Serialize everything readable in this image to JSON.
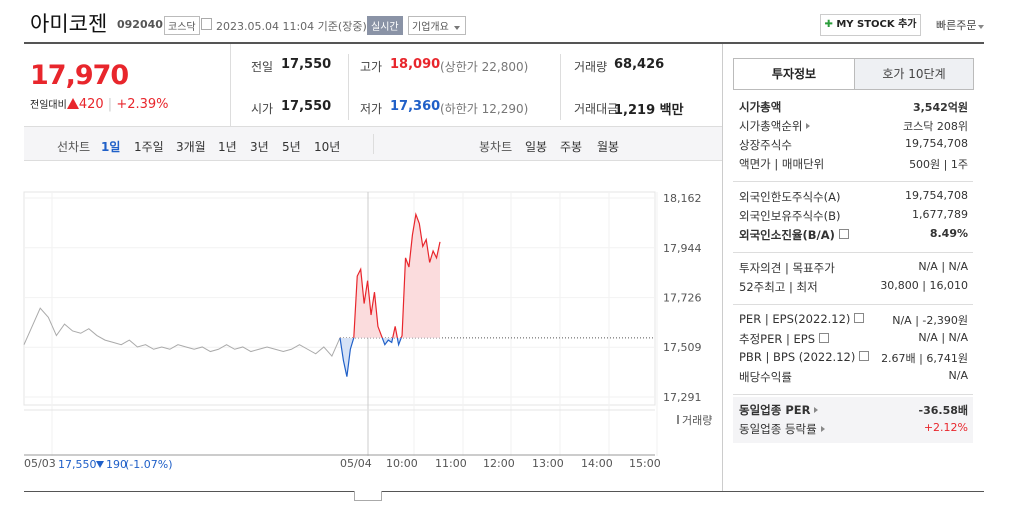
{
  "header": {
    "name": "아미코젠",
    "code": "092040",
    "market": "코스닥",
    "timestamp": "2023.05.04 11:04 기준(장중)",
    "realtime": "실시간",
    "company_info": "기업개요",
    "mystock": "MY STOCK 추가",
    "quick_order": "빠른주문"
  },
  "price": {
    "current": "17,970",
    "change_label": "전일대비",
    "change": "420",
    "change_pct": "+2.39%"
  },
  "quotes": {
    "rows": [
      [
        {
          "label": "전일",
          "value": "17,550"
        },
        {
          "label": "고가",
          "value": "18,090",
          "note": "(상한가 22,800)"
        },
        {
          "label": "거래량",
          "value": "68,426"
        }
      ],
      [
        {
          "label": "시가",
          "value": "17,550"
        },
        {
          "label": "저가",
          "value": "17,360",
          "note": "(하한가 12,290)"
        },
        {
          "label": "거래대금",
          "value": "1,219 백만"
        }
      ]
    ]
  },
  "tabs": {
    "line_chart": "선차트",
    "periods": [
      "1일",
      "1주일",
      "3개월",
      "1년",
      "3년",
      "5년",
      "10년"
    ],
    "candle_chart": "봉차트",
    "candles": [
      "일봉",
      "주봉",
      "월봉"
    ]
  },
  "chart_data": {
    "type": "line",
    "ylim": [
      17291,
      18162
    ],
    "yticks": [
      {
        "value": 17291,
        "label": "17,291"
      },
      {
        "value": 17509,
        "label": "17,509"
      },
      {
        "value": 17726,
        "label": "17,726"
      },
      {
        "value": 17944,
        "label": "17,944"
      },
      {
        "value": 18162,
        "label": "18,162"
      }
    ],
    "xticks": [
      "05/03",
      "05/04",
      "10:00",
      "11:00",
      "12:00",
      "13:00",
      "14:00",
      "15:00"
    ],
    "baseline": 17550,
    "prev_close": "17,550",
    "prev_change": "190",
    "prev_change_pct": "(-1.07%)",
    "volume_label": "거래량",
    "series": [
      {
        "color": "#aaaaaa",
        "values": [
          17520,
          17600,
          17680,
          17640,
          17560,
          17610,
          17580,
          17570,
          17590,
          17560,
          17540,
          17530,
          17520,
          17540,
          17510,
          17520,
          17500,
          17510,
          17500,
          17520,
          17510,
          17500,
          17510,
          17490,
          17500,
          17520,
          17500,
          17510,
          17490,
          17500,
          17510,
          17500,
          17490,
          17500,
          17520,
          17500,
          17480,
          17510,
          17470,
          17550
        ]
      },
      {
        "color": "#e8262c",
        "color_below": "#2060c8",
        "values": [
          17550,
          17450,
          17380,
          17500,
          17550,
          17820,
          17850,
          17700,
          17800,
          17650,
          17750,
          17600,
          17560,
          17520,
          17540,
          17530,
          17600,
          17520,
          17560,
          17900,
          17860,
          18000,
          18090,
          18050,
          17950,
          17980,
          17880,
          17930,
          17900,
          17970
        ]
      }
    ]
  },
  "invest": {
    "tabs": [
      "투자정보",
      "호가 10단계"
    ],
    "groups": [
      [
        {
          "label": "시가총액",
          "value": "3,542억원",
          "bold": true
        },
        {
          "label": "시가총액순위",
          "value": "코스닥 208위",
          "link": true
        },
        {
          "label": "상장주식수",
          "value": "19,754,708"
        },
        {
          "label": "액면가 | 매매단위",
          "value": "500원 | 1주"
        }
      ],
      [
        {
          "label": "외국인한도주식수(A)",
          "value": "19,754,708"
        },
        {
          "label": "외국인보유주식수(B)",
          "value": "1,677,789"
        },
        {
          "label": "외국인소진율(B/A)",
          "value": "8.49%",
          "bold": true,
          "help": true
        }
      ],
      [
        {
          "label": "투자의견 | 목표주가",
          "value": "N/A | N/A"
        },
        {
          "label": "52주최고 | 최저",
          "value": "30,800 | 16,010"
        }
      ],
      [
        {
          "label": "PER | EPS(2022.12)",
          "value": "N/A | -2,390원",
          "help": true
        },
        {
          "label": "추정PER | EPS",
          "value": "N/A | N/A",
          "help": true
        },
        {
          "label": "PBR | BPS (2022.12)",
          "value": "2.67배 | 6,741원",
          "help": true
        },
        {
          "label": "배당수익률",
          "value": "N/A"
        }
      ],
      [
        {
          "label": "동일업종 PER",
          "value": "-36.58배",
          "bold": true,
          "link": true,
          "shade": true
        },
        {
          "label": "동일업종 등락률",
          "value": "+2.12%",
          "link": true,
          "shade": true,
          "color": "#e8262c"
        }
      ]
    ]
  }
}
